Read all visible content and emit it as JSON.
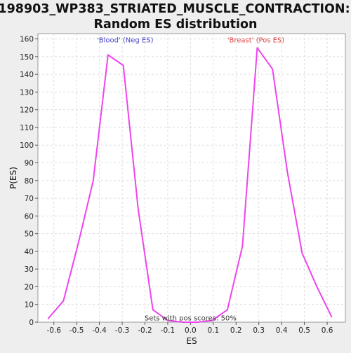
{
  "title_line1": "198903_WP383_STRIATED_MUSCLE_CONTRACTION:",
  "title_line2": "Random ES distribution",
  "chart_data": {
    "type": "line",
    "xlabel": "ES",
    "ylabel": "P(ES)",
    "xlim": [
      -0.67,
      0.68
    ],
    "ylim": [
      0,
      163
    ],
    "x_ticks": [
      -0.6,
      -0.5,
      -0.4,
      -0.3,
      -0.2,
      -0.1,
      0.0,
      0.1,
      0.2,
      0.3,
      0.4,
      0.5,
      0.6
    ],
    "x_tick_labels": [
      "-0.6",
      "-0.5",
      "-0.4",
      "-0.3",
      "-0.2",
      "-0.1",
      "0.0",
      "0.1",
      "0.2",
      "0.3",
      "0.4",
      "0.5",
      "0.6"
    ],
    "y_ticks": [
      0,
      10,
      20,
      30,
      40,
      50,
      60,
      70,
      80,
      90,
      100,
      110,
      120,
      130,
      140,
      150,
      160
    ],
    "grid": true,
    "line_color": "#ee44ee",
    "series": [
      {
        "points": [
          [
            -0.625,
            2
          ],
          [
            -0.558,
            12
          ],
          [
            -0.492,
            45
          ],
          [
            -0.427,
            80
          ],
          [
            -0.362,
            151
          ],
          [
            -0.295,
            145
          ],
          [
            -0.23,
            64
          ],
          [
            -0.165,
            7
          ],
          [
            -0.1,
            1
          ],
          [
            -0.035,
            0
          ],
          [
            0.03,
            0
          ],
          [
            0.095,
            1
          ],
          [
            0.162,
            7
          ],
          [
            0.228,
            43
          ],
          [
            0.293,
            155
          ],
          [
            0.36,
            143
          ],
          [
            0.425,
            85
          ],
          [
            0.49,
            39
          ],
          [
            0.555,
            20
          ],
          [
            0.62,
            3
          ]
        ]
      }
    ],
    "annotations": [
      {
        "text": "'Blood' (Neg ES)",
        "x": -0.287,
        "y": 158,
        "color": "#4444cc"
      },
      {
        "text": "'Breast' (Pos ES)",
        "x": 0.287,
        "y": 158,
        "color": "#dd4444"
      },
      {
        "text": "Sets with pos scores: 50%",
        "x": 0.0,
        "y": 1,
        "color": "#333333"
      }
    ]
  }
}
